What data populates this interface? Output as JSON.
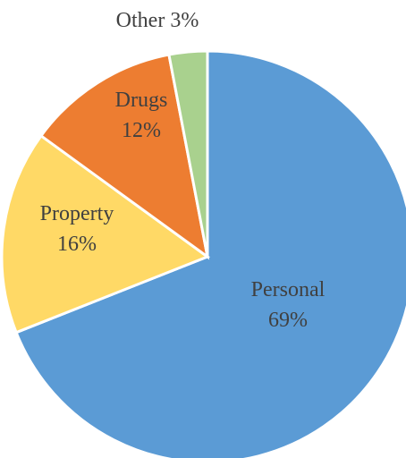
{
  "chart_data": {
    "type": "pie",
    "categories": [
      "Personal",
      "Property",
      "Drugs",
      "Other"
    ],
    "values": [
      69,
      16,
      12,
      3
    ],
    "percent_labels": [
      "69%",
      "16%",
      "12%",
      "3%"
    ],
    "colors": [
      "#5b9bd5",
      "#ffd966",
      "#ed7d31",
      "#a9d18e"
    ],
    "start": "12 o'clock",
    "direction": "clockwise",
    "title": "",
    "legend": "none",
    "data_labels": "category and percentage"
  }
}
